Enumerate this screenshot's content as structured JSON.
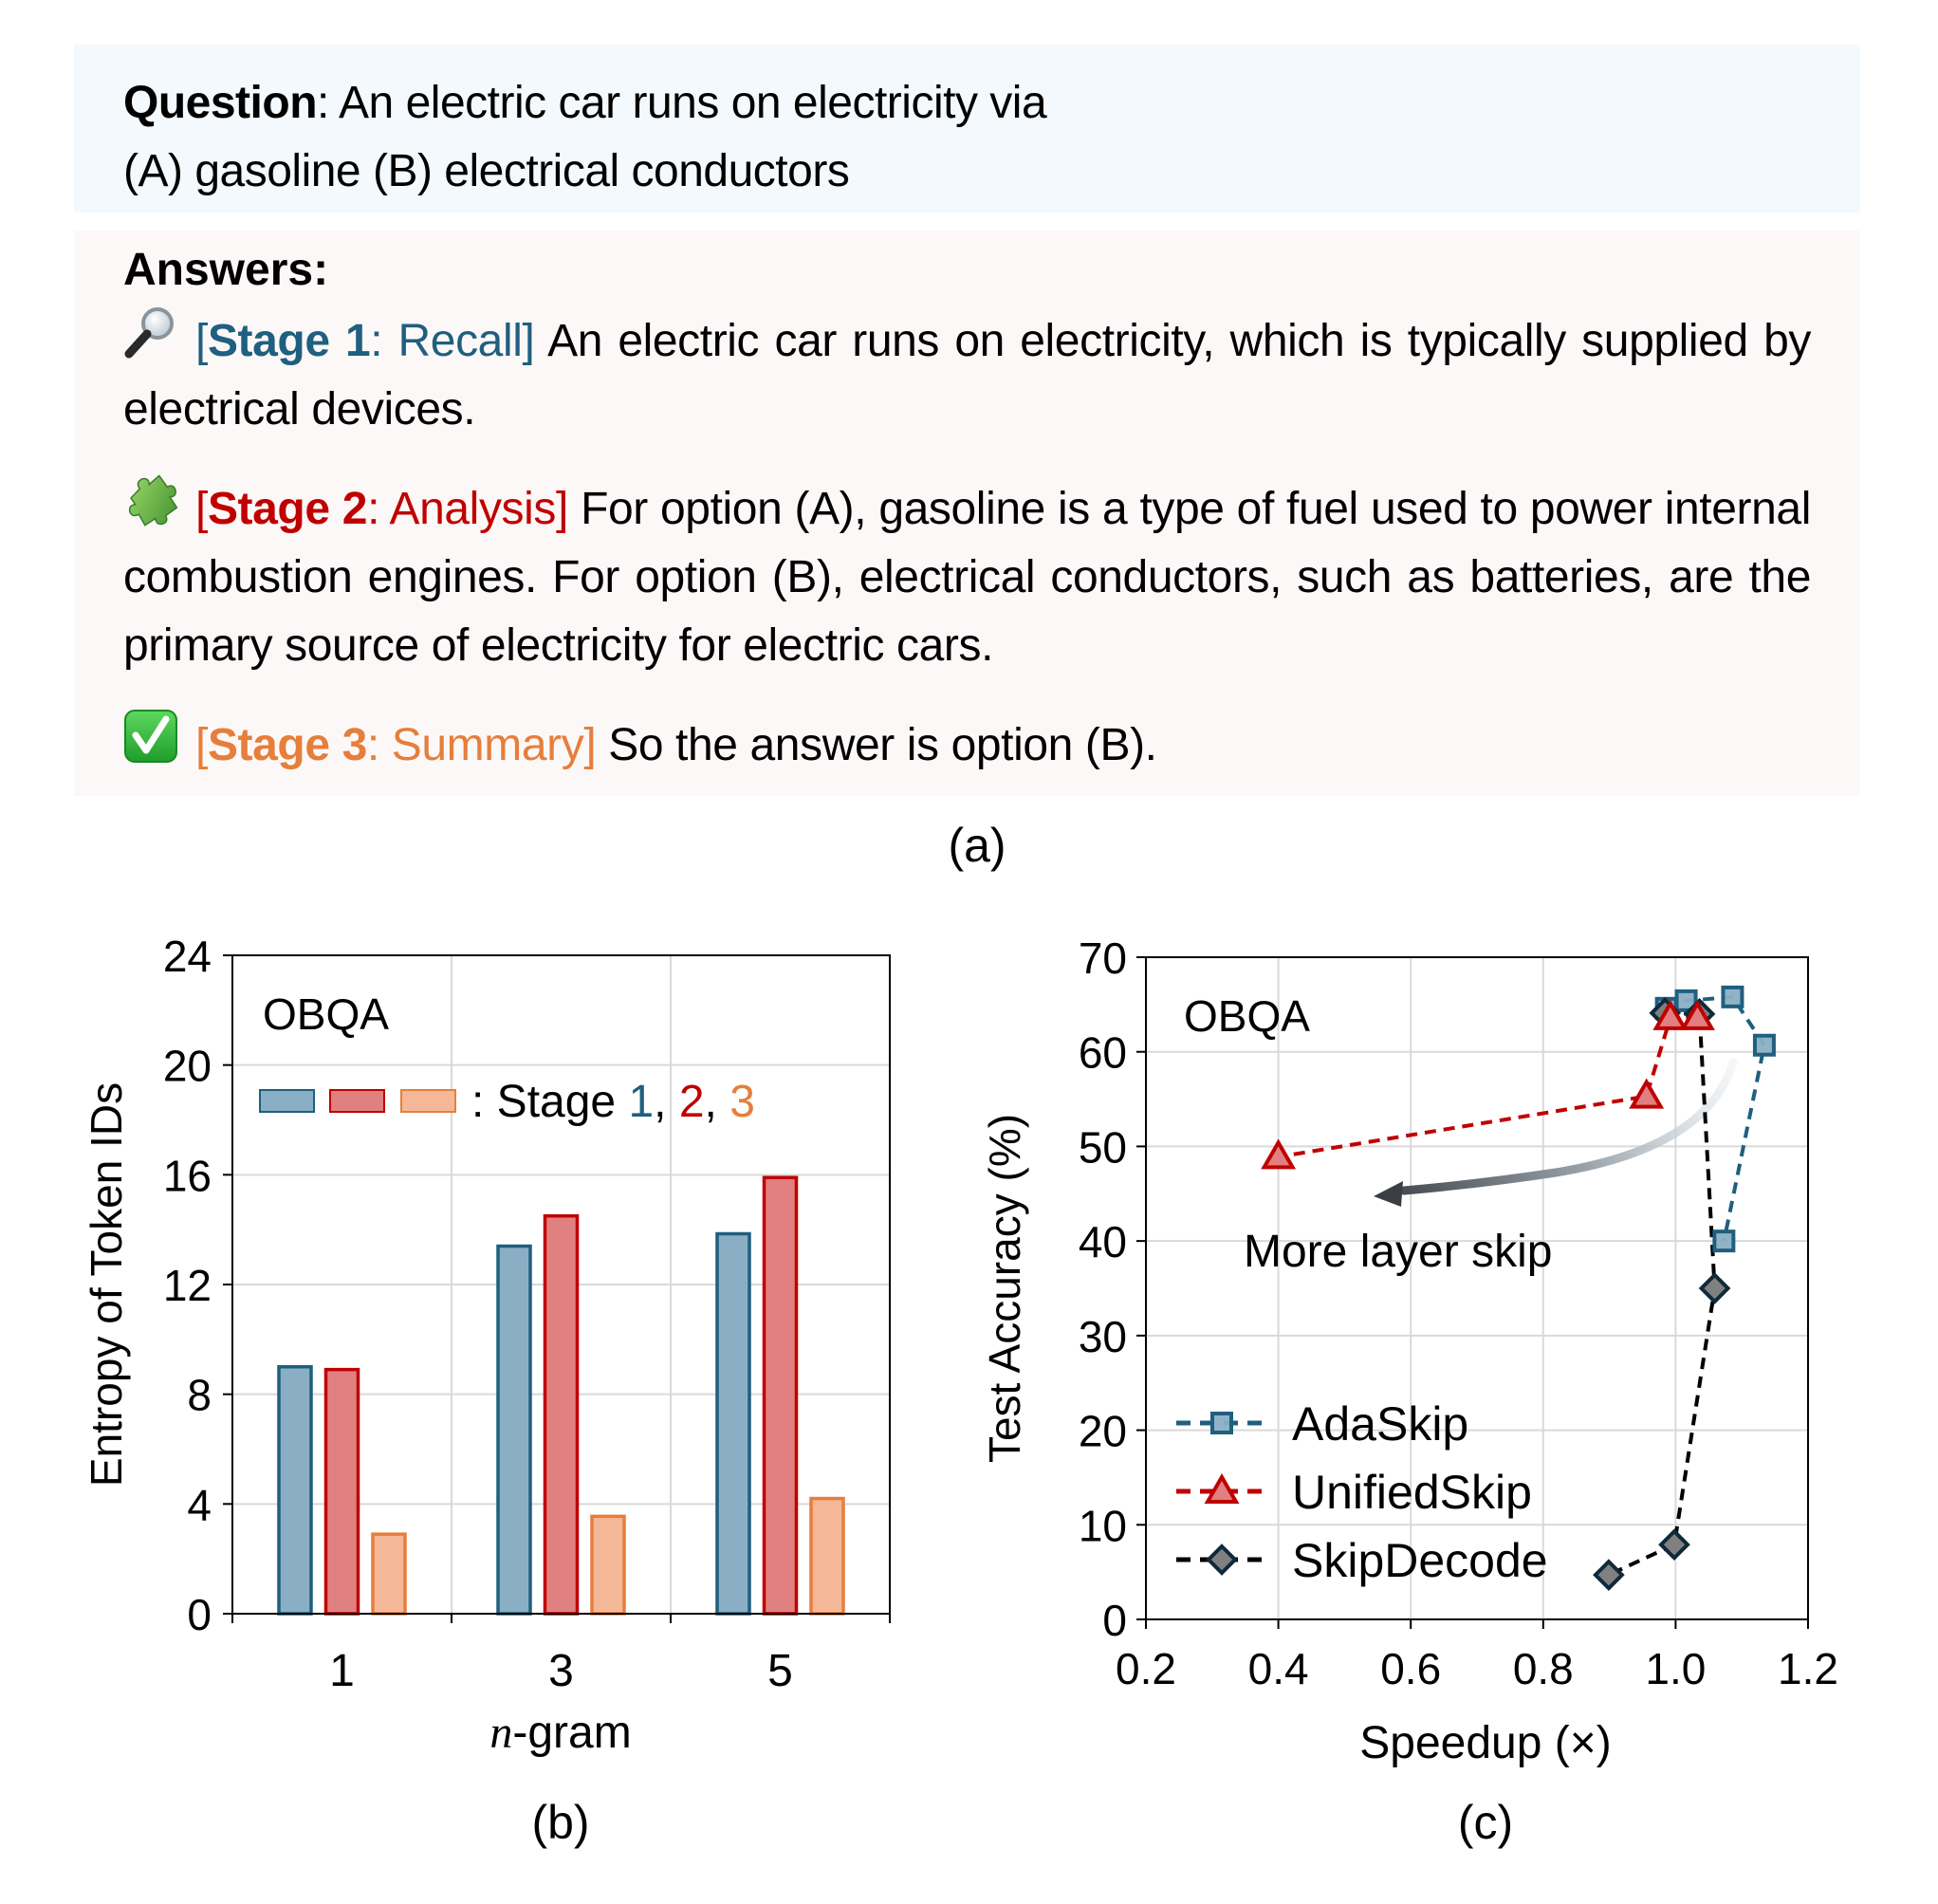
{
  "question": {
    "label": "Question",
    "line1": ": An electric car runs on electricity via",
    "line2": "(A) gasoline (B) electrical conductors"
  },
  "answers": {
    "title": "Answers:",
    "stages": [
      {
        "icon": "magnifying-glass-icon",
        "open": "[",
        "stage_word": "Stage 1",
        "colon": ": ",
        "name": "Recall",
        "close": "]",
        "text": " An electric car runs on electricity, which is typically supplied by electrical devices.",
        "color": "#1f5f7f"
      },
      {
        "icon": "puzzle-piece-icon",
        "open": "[",
        "stage_word": "Stage 2",
        "colon": ": ",
        "name": "Analysis",
        "close": "]",
        "text": " For option (A), gasoline is a type of fuel used to power internal combustion engines. For option (B), electrical conductors, such as batteries, are the primary source of electricity for electric cars.",
        "color": "#c00000"
      },
      {
        "icon": "check-mark-button-icon",
        "open": "[",
        "stage_word": "Stage 3",
        "colon": ": ",
        "name": "Summary",
        "close": "]",
        "text": " So the answer is option (B).",
        "color": "#e67e3c"
      }
    ]
  },
  "captions": {
    "a": "(a)",
    "b": "(b)",
    "c": "(c)"
  },
  "chart_data": [
    {
      "id": "b",
      "type": "bar",
      "title": "OBQA",
      "xlabel_italic": "n",
      "xlabel_rest": "-gram",
      "ylabel": "Entropy of Token IDs",
      "categories": [
        "1",
        "3",
        "5"
      ],
      "ylim": [
        0,
        24
      ],
      "yticks": [
        0,
        4,
        8,
        12,
        16,
        20,
        24
      ],
      "grid": true,
      "legend": {
        "placement": "top-left",
        "prefix": ": Stage ",
        "parts": [
          "1",
          ", ",
          "2",
          ", ",
          "3"
        ]
      },
      "series": [
        {
          "name": "Stage 1",
          "values": [
            9.0,
            13.4,
            13.85
          ],
          "fill": "#8aafc4",
          "stroke": "#1f5f7f"
        },
        {
          "name": "Stage 2",
          "values": [
            8.9,
            14.5,
            15.9
          ],
          "fill": "#e08080",
          "stroke": "#c00000"
        },
        {
          "name": "Stage 3",
          "values": [
            2.9,
            3.55,
            4.2
          ],
          "fill": "#f4b898",
          "stroke": "#e67e3c"
        }
      ]
    },
    {
      "id": "c",
      "type": "line",
      "title": "OBQA",
      "xlabel": "Speedup (×)",
      "ylabel": "Test Accuracy (%)",
      "xlim": [
        0.2,
        1.2
      ],
      "ylim": [
        0,
        70
      ],
      "xticks": [
        "0.2",
        "0.4",
        "0.6",
        "0.8",
        "1.0",
        "1.2"
      ],
      "yticks": [
        0,
        10,
        20,
        30,
        40,
        50,
        60,
        70
      ],
      "grid": true,
      "legend": {
        "placement": "bottom-left"
      },
      "annotation": {
        "text": "More layer skip",
        "arrow": "curved arrow pointing left toward lower speedup"
      },
      "series": [
        {
          "name": "AdaSkip",
          "marker": "square",
          "color": "#1f5f7f",
          "fill": "#8aafc4",
          "points": [
            [
              0.986,
              64.6
            ],
            [
              1.016,
              65.4
            ],
            [
              1.086,
              65.8
            ],
            [
              1.134,
              60.7
            ],
            [
              1.073,
              40.0
            ]
          ]
        },
        {
          "name": "UnifiedSkip",
          "marker": "triangle",
          "color": "#c00000",
          "fill": "#e08080",
          "points": [
            [
              1.033,
              63.6
            ],
            [
              0.992,
              63.6
            ],
            [
              0.956,
              55.3
            ],
            [
              0.4,
              48.9
            ]
          ]
        },
        {
          "name": "SkipDecode",
          "marker": "diamond",
          "color": "#000000",
          "stroke": "#0f2a3a",
          "fill": "#808080",
          "points": [
            [
              0.984,
              64.1
            ],
            [
              1.036,
              64.0
            ],
            [
              1.059,
              35.0
            ],
            [
              0.998,
              7.9
            ],
            [
              0.899,
              4.7
            ]
          ]
        }
      ]
    }
  ]
}
